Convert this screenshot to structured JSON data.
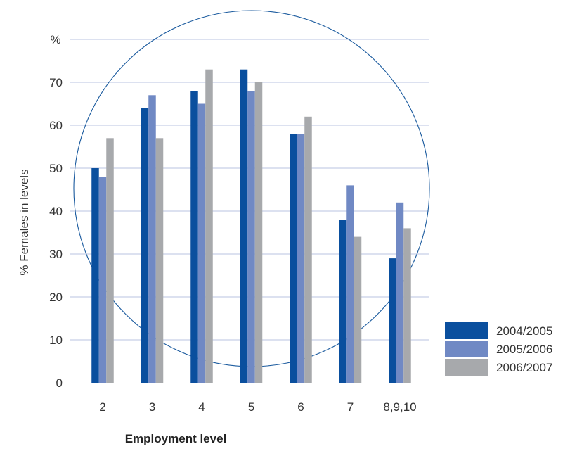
{
  "chart_data": {
    "type": "bar",
    "title": "",
    "unit": "%",
    "ylabel": "% Females in levels",
    "xlabel": "Employment level",
    "ylim": [
      0,
      80
    ],
    "yticks": [
      0,
      10,
      20,
      30,
      40,
      50,
      60,
      70
    ],
    "grid": true,
    "legend": "bottom-right",
    "categories": [
      "2",
      "3",
      "4",
      "5",
      "6",
      "7",
      "8,9,10"
    ],
    "series": [
      {
        "name": "2004/2005",
        "color": "#0a4f9e",
        "values": [
          50,
          64,
          68,
          73,
          58,
          38,
          29
        ]
      },
      {
        "name": "2005/2006",
        "color": "#7089c4",
        "values": [
          48,
          67,
          65,
          68,
          58,
          46,
          42
        ]
      },
      {
        "name": "2006/2007",
        "color": "#a7a9ac",
        "values": [
          57,
          57,
          73,
          70,
          62,
          34,
          36
        ]
      }
    ],
    "colors": {
      "grid": "#c6cfe6",
      "circle": "#1a5a9e"
    }
  }
}
